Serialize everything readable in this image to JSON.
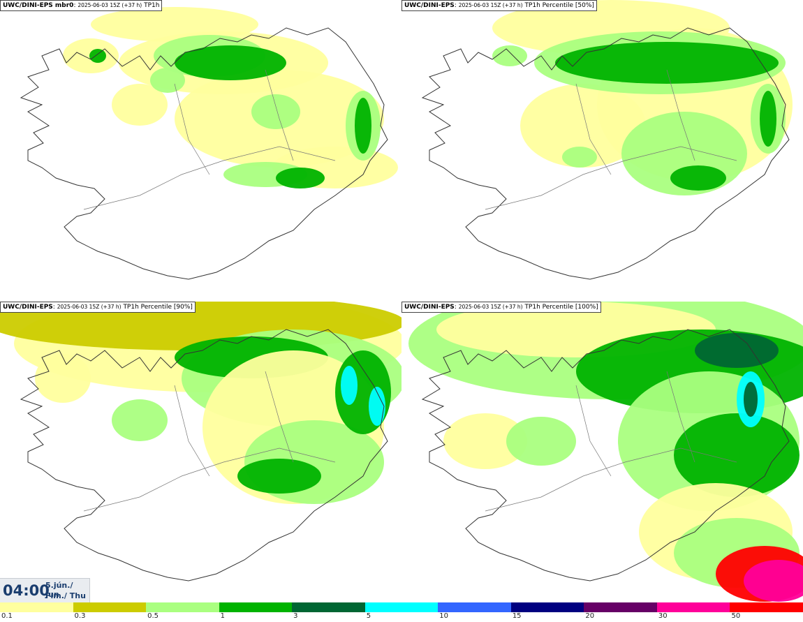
{
  "panels": [
    {
      "model": "UWC/DINI-EPS mbr0",
      "run": "2025-06-03 15Z (+37 h)",
      "field": "TP1h"
    },
    {
      "model": "UWC/DINI-EPS",
      "run": "2025-06-03 15Z (+37 h)",
      "field": "TP1h Percentile [50%]"
    },
    {
      "model": "UWC/DINI-EPS",
      "run": "2025-06-03 15Z (+37 h)",
      "field": "TP1h Percentile [90%]"
    },
    {
      "model": "UWC/DINI-EPS",
      "run": "2025-06-03 15Z (+37 h)",
      "field": "TP1h Percentile [100%]"
    }
  ],
  "valid_time": {
    "time": "04:00",
    "date_line1": "5.jún./ Jun",
    "date_line2": "Fim./ Thu"
  },
  "colorbar": {
    "ticks": [
      "0.1",
      "0.3",
      "0.5",
      "1",
      "3",
      "5",
      "10",
      "15",
      "20",
      "30",
      "50"
    ],
    "colors": [
      "#ffff9e",
      "#cccc00",
      "#aaff80",
      "#00b300",
      "#006633",
      "#00ffff",
      "#3366ff",
      "#000080",
      "#660066",
      "#ff0099",
      "#ff0000"
    ]
  }
}
